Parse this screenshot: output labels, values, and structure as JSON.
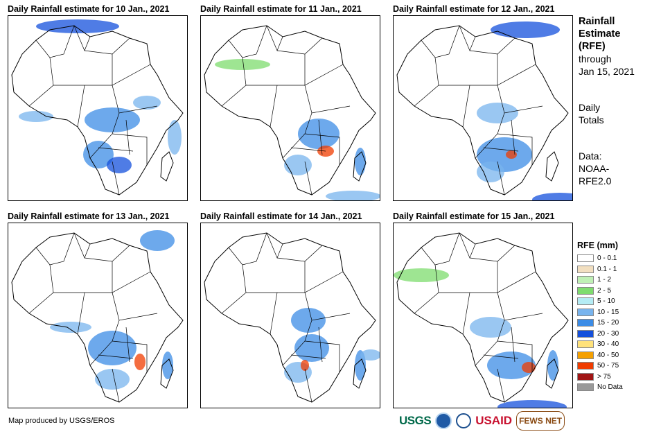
{
  "panels": [
    {
      "title": "Daily Rainfall estimate for 10 Jan., 2021"
    },
    {
      "title": "Daily Rainfall estimate for 11 Jan., 2021"
    },
    {
      "title": "Daily Rainfall estimate for 12 Jan., 2021"
    },
    {
      "title": "Daily Rainfall estimate for 13 Jan., 2021"
    },
    {
      "title": "Daily Rainfall estimate for 14 Jan., 2021"
    },
    {
      "title": "Daily Rainfall estimate for 15 Jan., 2021"
    }
  ],
  "side": {
    "line1": "Rainfall",
    "line2": "Estimate",
    "line3": "(RFE)",
    "line4": "through",
    "line5": "Jan 15, 2021",
    "daily1": "Daily",
    "daily2": "Totals",
    "data1": "Data:",
    "data2": "NOAA-",
    "data3": "RFE2.0"
  },
  "legend": {
    "title": "RFE (mm)",
    "items": [
      {
        "label": "0 - 0.1",
        "color": "#ffffff"
      },
      {
        "label": "0.1 - 1",
        "color": "#f2dfc0"
      },
      {
        "label": "1 - 2",
        "color": "#bff0b5"
      },
      {
        "label": "2 - 5",
        "color": "#7edc6e"
      },
      {
        "label": "5 - 10",
        "color": "#b4ecf4"
      },
      {
        "label": "10 - 15",
        "color": "#78b4ee"
      },
      {
        "label": "15 - 20",
        "color": "#3c8ce6"
      },
      {
        "label": "20 - 30",
        "color": "#1450dc"
      },
      {
        "label": "30 - 40",
        "color": "#ffe27a"
      },
      {
        "label": "40 - 50",
        "color": "#f5a000"
      },
      {
        "label": "50 - 75",
        "color": "#f03c00"
      },
      {
        "label": "> 75",
        "color": "#a01414"
      },
      {
        "label": "No Data",
        "color": "#999999"
      }
    ]
  },
  "footer": "Map produced by USGS/EROS",
  "logos": {
    "usgs": "USGS",
    "usaid": "USAID",
    "fews": "FEWS NET"
  }
}
